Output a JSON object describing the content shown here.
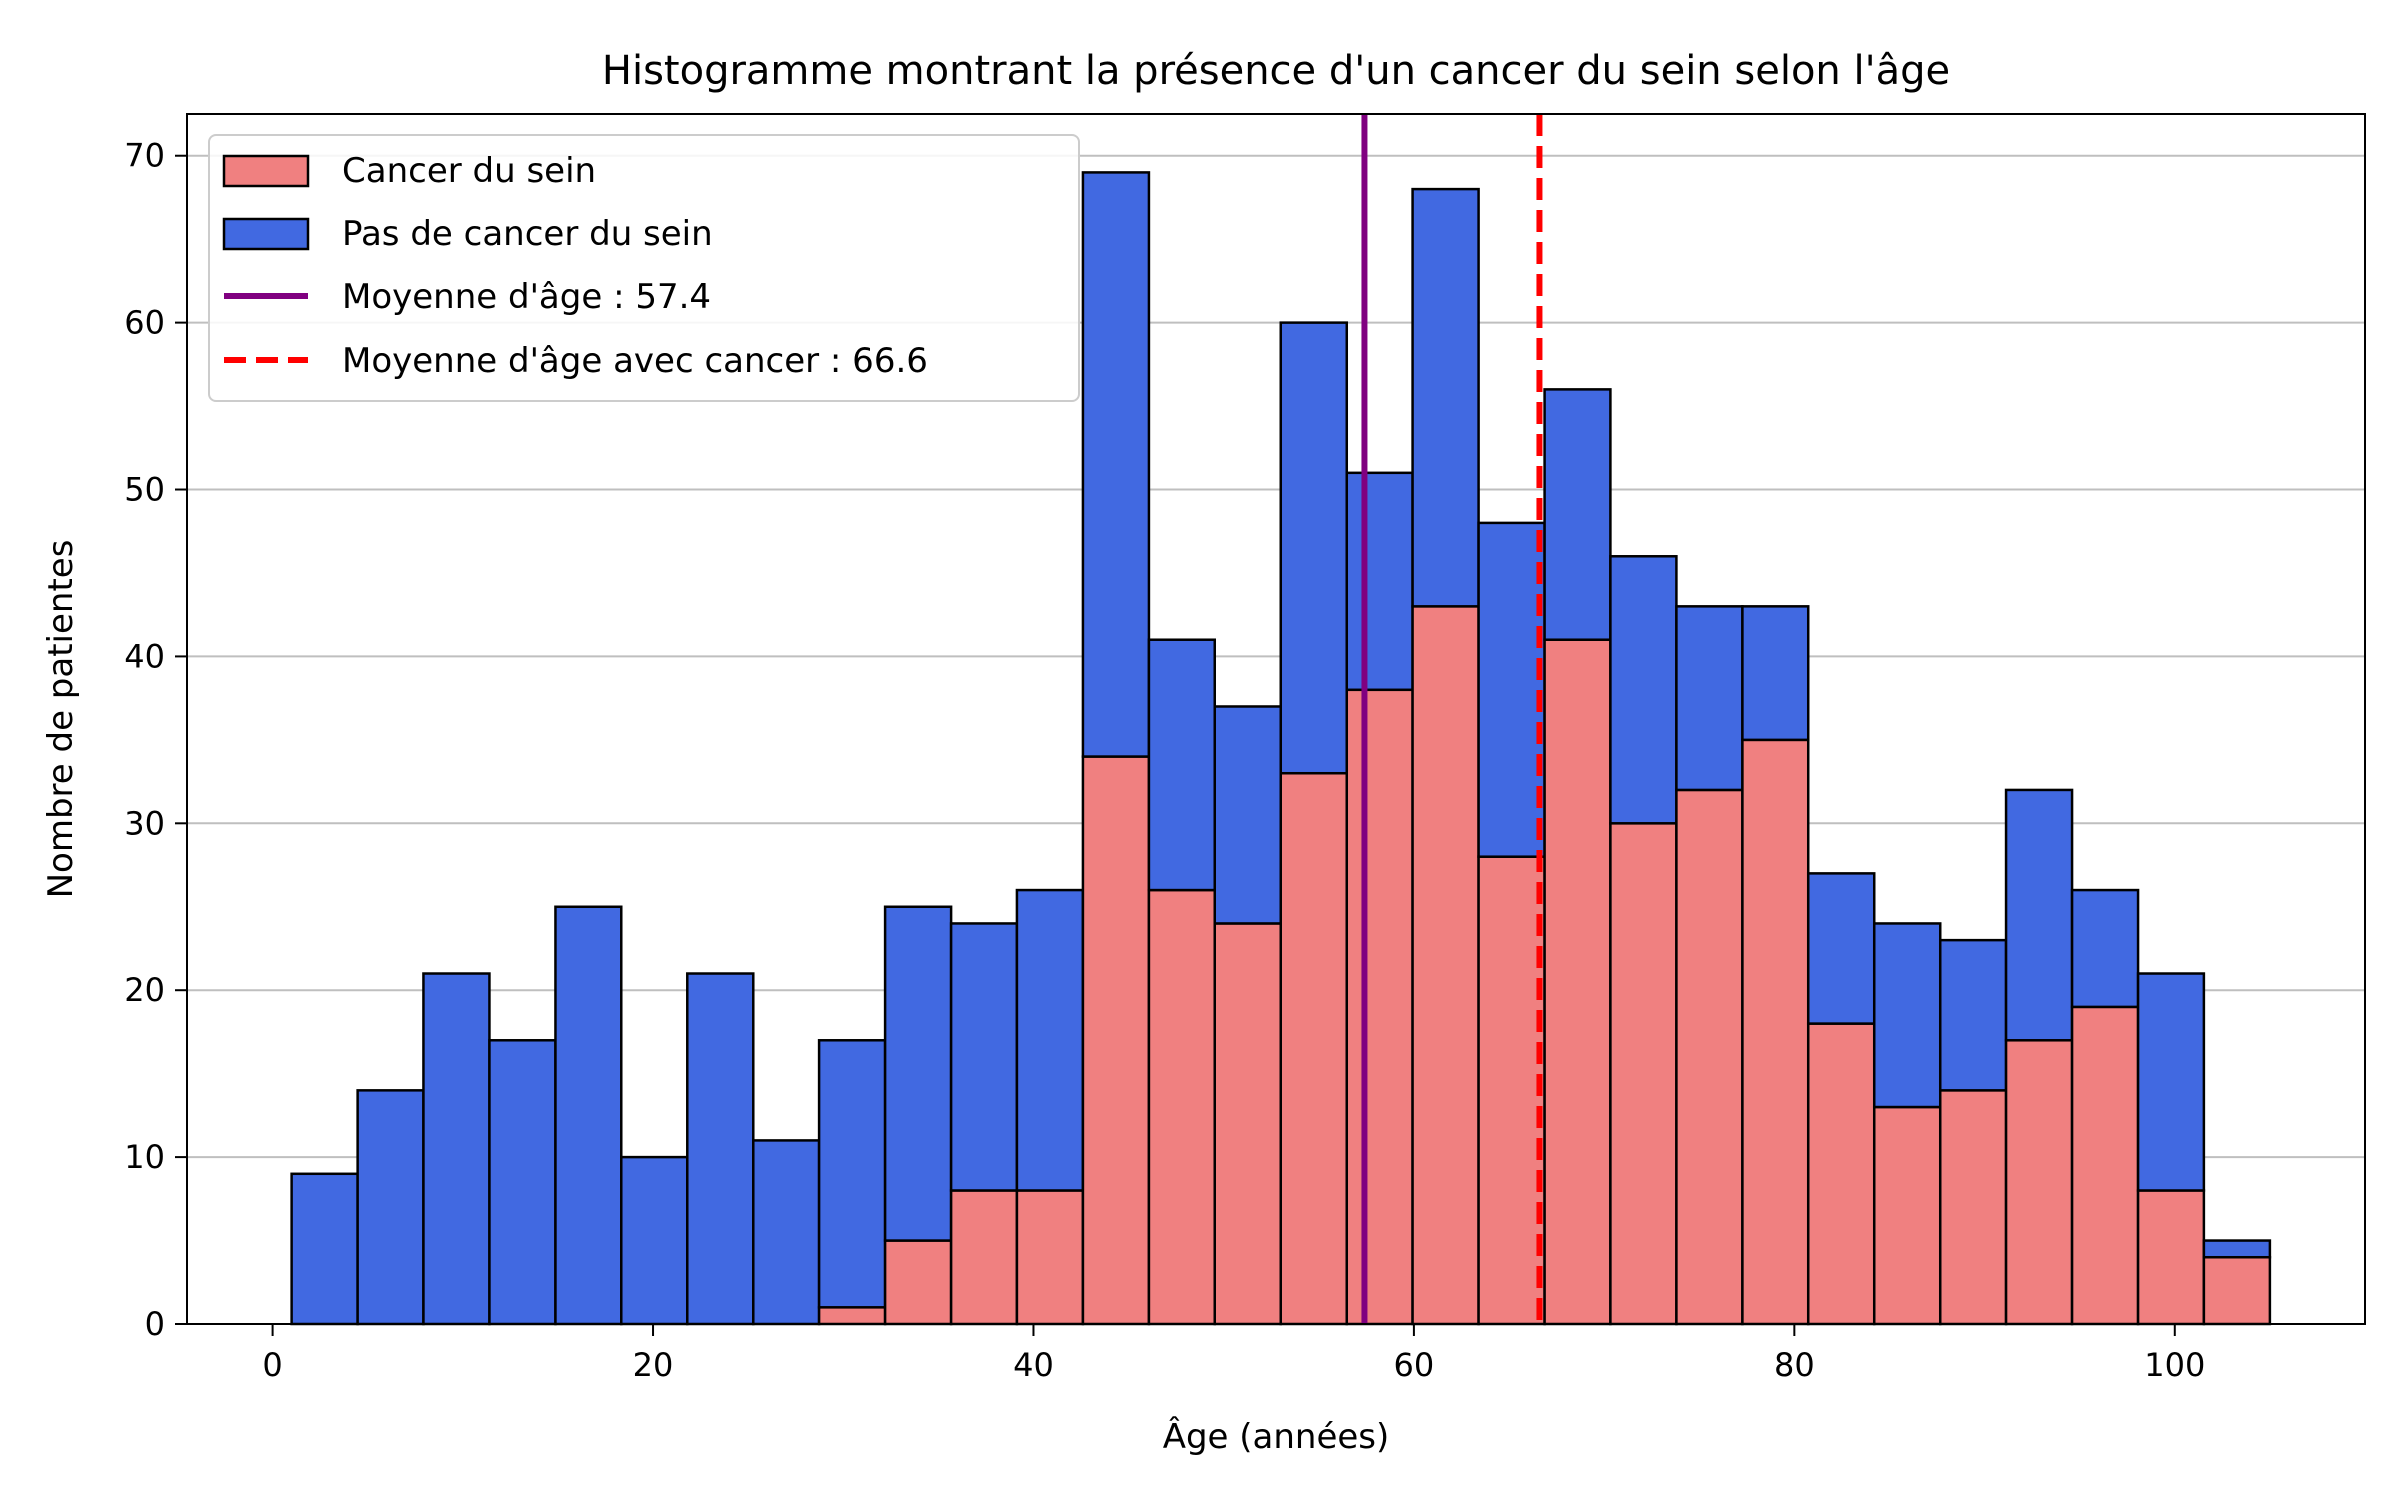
{
  "chart_data": {
    "type": "bar",
    "stacked": true,
    "title": "Histogramme montrant la présence d'un cancer du sein selon l'âge",
    "xlabel": "Âge (années)",
    "ylabel": "Nombre de patientes",
    "xlim": [
      -4.5,
      110
    ],
    "ylim": [
      0,
      72.5
    ],
    "x_ticks": [
      0,
      20,
      40,
      60,
      80,
      100
    ],
    "y_ticks": [
      0,
      10,
      20,
      30,
      40,
      50,
      60,
      70
    ],
    "grid": "horizontal",
    "legend_position": "top-left",
    "bin_edges": [
      1.0,
      4.47,
      7.93,
      11.4,
      14.87,
      18.33,
      21.8,
      25.27,
      28.73,
      32.2,
      35.67,
      39.13,
      42.6,
      46.07,
      49.53,
      53.0,
      56.47,
      59.93,
      63.4,
      66.87,
      70.33,
      73.8,
      77.27,
      80.73,
      84.2,
      87.67,
      91.13,
      94.6,
      98.07,
      101.53,
      105.0
    ],
    "series": [
      {
        "name": "Cancer du sein",
        "color": "#f08080",
        "values": [
          0,
          0,
          0,
          0,
          0,
          0,
          0,
          0,
          1,
          5,
          8,
          8,
          34,
          26,
          24,
          33,
          38,
          43,
          28,
          41,
          30,
          32,
          35,
          18,
          13,
          14,
          17,
          19,
          8,
          4
        ]
      },
      {
        "name": "Pas de cancer du sein",
        "color": "#4169e1",
        "values": [
          9,
          14,
          21,
          17,
          25,
          10,
          21,
          11,
          16,
          20,
          16,
          18,
          35,
          15,
          13,
          27,
          13,
          25,
          20,
          15,
          16,
          11,
          8,
          9,
          11,
          9,
          15,
          7,
          13,
          1
        ]
      }
    ],
    "mean_lines": [
      {
        "name": "Moyenne d'âge : 57.4",
        "value": 57.4,
        "color": "#800080",
        "style": "solid"
      },
      {
        "name": "Moyenne d'âge avec cancer : 66.6",
        "value": 66.6,
        "color": "#ff0000",
        "style": "dashed"
      }
    ]
  }
}
